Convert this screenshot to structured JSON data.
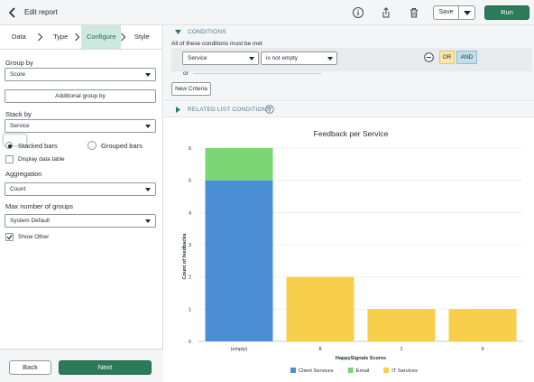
{
  "header": {
    "title": "Edit report",
    "save_label": "Save",
    "run_label": "Run",
    "icons": [
      "chevron-left-icon",
      "info-icon",
      "share-icon",
      "trash-icon",
      "chevron-down-icon"
    ]
  },
  "steps": [
    {
      "label": "Data",
      "active": false
    },
    {
      "label": "Type",
      "active": false
    },
    {
      "label": "Configure",
      "active": true
    },
    {
      "label": "Style",
      "active": false
    }
  ],
  "config": {
    "group_by_label": "Group by",
    "group_by_value": "Score",
    "additional_group_by_label": "Additional group by",
    "stack_by_label": "Stack by",
    "stack_by_value": "Service",
    "stacked_bars_label": "Stacked bars",
    "grouped_bars_label": "Grouped bars",
    "stacked_selected": true,
    "display_data_table_label": "Display data table",
    "display_data_table_checked": false,
    "aggregation_label": "Aggregation",
    "aggregation_value": "Count",
    "max_groups_label": "Max number of groups",
    "max_groups_value": "System Default",
    "show_other_label": "Show Other",
    "show_other_checked": true,
    "back_label": "Back",
    "next_label": "Next"
  },
  "conditions": {
    "title": "CONDITIONS",
    "description": "All of these conditions must be met",
    "field_value": "Service",
    "operator_value": "is not empty",
    "or_label": "OR",
    "and_label": "AND",
    "or_separator": "or",
    "new_criteria_label": "New Criteria",
    "related_title": "RELATED LIST CONDITIONS"
  },
  "colors": {
    "accent_green": "#2d7a5a",
    "client_services": "#4a8fd4",
    "email": "#7bd574",
    "it_services": "#f7cf4a"
  },
  "chart_data": {
    "type": "bar",
    "stacked": true,
    "title": "Feedback per Service",
    "xlabel": "HappySignals Scores",
    "ylabel": "Count of feedbacks",
    "categories": [
      "(empty)",
      "8",
      "1",
      "9"
    ],
    "series": [
      {
        "name": "Client Services",
        "color": "#4a8fd4",
        "values": [
          5,
          0,
          0,
          0
        ]
      },
      {
        "name": "Email",
        "color": "#7bd574",
        "values": [
          1,
          0,
          0,
          0
        ]
      },
      {
        "name": "IT Services",
        "color": "#f7cf4a",
        "values": [
          0,
          2,
          1,
          1
        ]
      }
    ],
    "ylim": [
      0,
      6
    ],
    "yticks": [
      0,
      1,
      2,
      3,
      4,
      5,
      6
    ],
    "grid": true,
    "legend": "bottom"
  }
}
